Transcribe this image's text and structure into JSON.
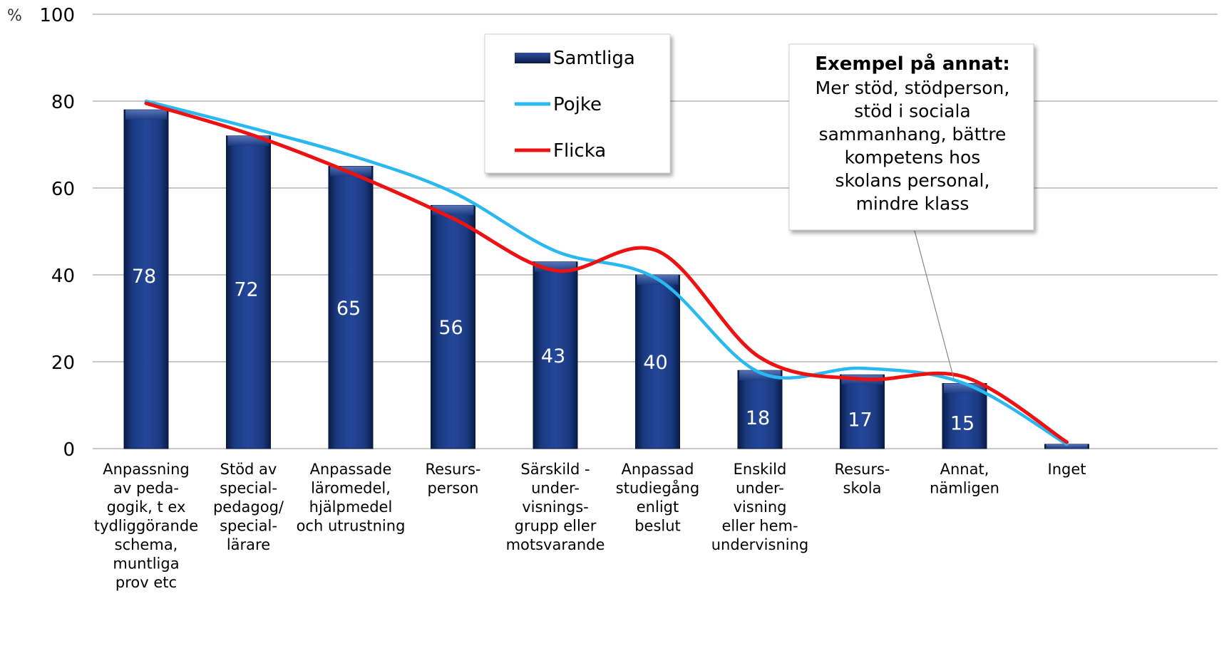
{
  "chart_data": {
    "type": "bar",
    "unit_label": "%",
    "ylim": [
      0,
      100
    ],
    "yticks": [
      0,
      20,
      40,
      60,
      80,
      100
    ],
    "grid": true,
    "categories": [
      [
        "Anpassning",
        "av peda-",
        "gogik, t ex",
        "tydliggörande",
        "schema,",
        "muntliga",
        "prov etc"
      ],
      [
        "Stöd av",
        "special-",
        "pedagog/",
        "special-",
        "lärare"
      ],
      [
        "Anpassade",
        "läromedel,",
        "hjälpmedel",
        "och utrustning"
      ],
      [
        "Resurs-",
        "person"
      ],
      [
        "Särskild -",
        "under-",
        "visnings-",
        "grupp eller",
        "motsvarande"
      ],
      [
        "Anpassad",
        "studiegång",
        "enligt",
        "beslut"
      ],
      [
        "Enskild",
        "under-",
        "visning",
        "eller hem-",
        "undervisning"
      ],
      [
        "Resurs-",
        "skola"
      ],
      [
        "Annat,",
        "nämligen"
      ],
      [
        "Inget"
      ]
    ],
    "series": [
      {
        "name": "Samtliga",
        "type": "bar",
        "color": "#1a3a80",
        "values": [
          78,
          72,
          65,
          56,
          43,
          40,
          18,
          17,
          15,
          1
        ],
        "labels": [
          "78",
          "72",
          "65",
          "56",
          "43",
          "40",
          "18",
          "17",
          "15",
          ""
        ]
      },
      {
        "name": "Pojke",
        "type": "line",
        "color": "#29b8f0",
        "values": [
          80,
          74,
          67.5,
          59,
          45.5,
          39,
          17.5,
          18.5,
          15,
          1
        ]
      },
      {
        "name": "Flicka",
        "type": "line",
        "color": "#ee1111",
        "values": [
          79.5,
          72.5,
          63.5,
          53,
          41,
          45.5,
          21,
          16,
          16.5,
          1.5
        ]
      }
    ],
    "legend_position": "top-center",
    "annotation": {
      "title": "Exempel på annat:",
      "lines": [
        "Mer stöd, stödperson,",
        "stöd i sociala",
        "sammanhang, bättre",
        "kompetens hos",
        "skolans personal,",
        "mindre klass"
      ],
      "points_to_category": 8
    }
  }
}
